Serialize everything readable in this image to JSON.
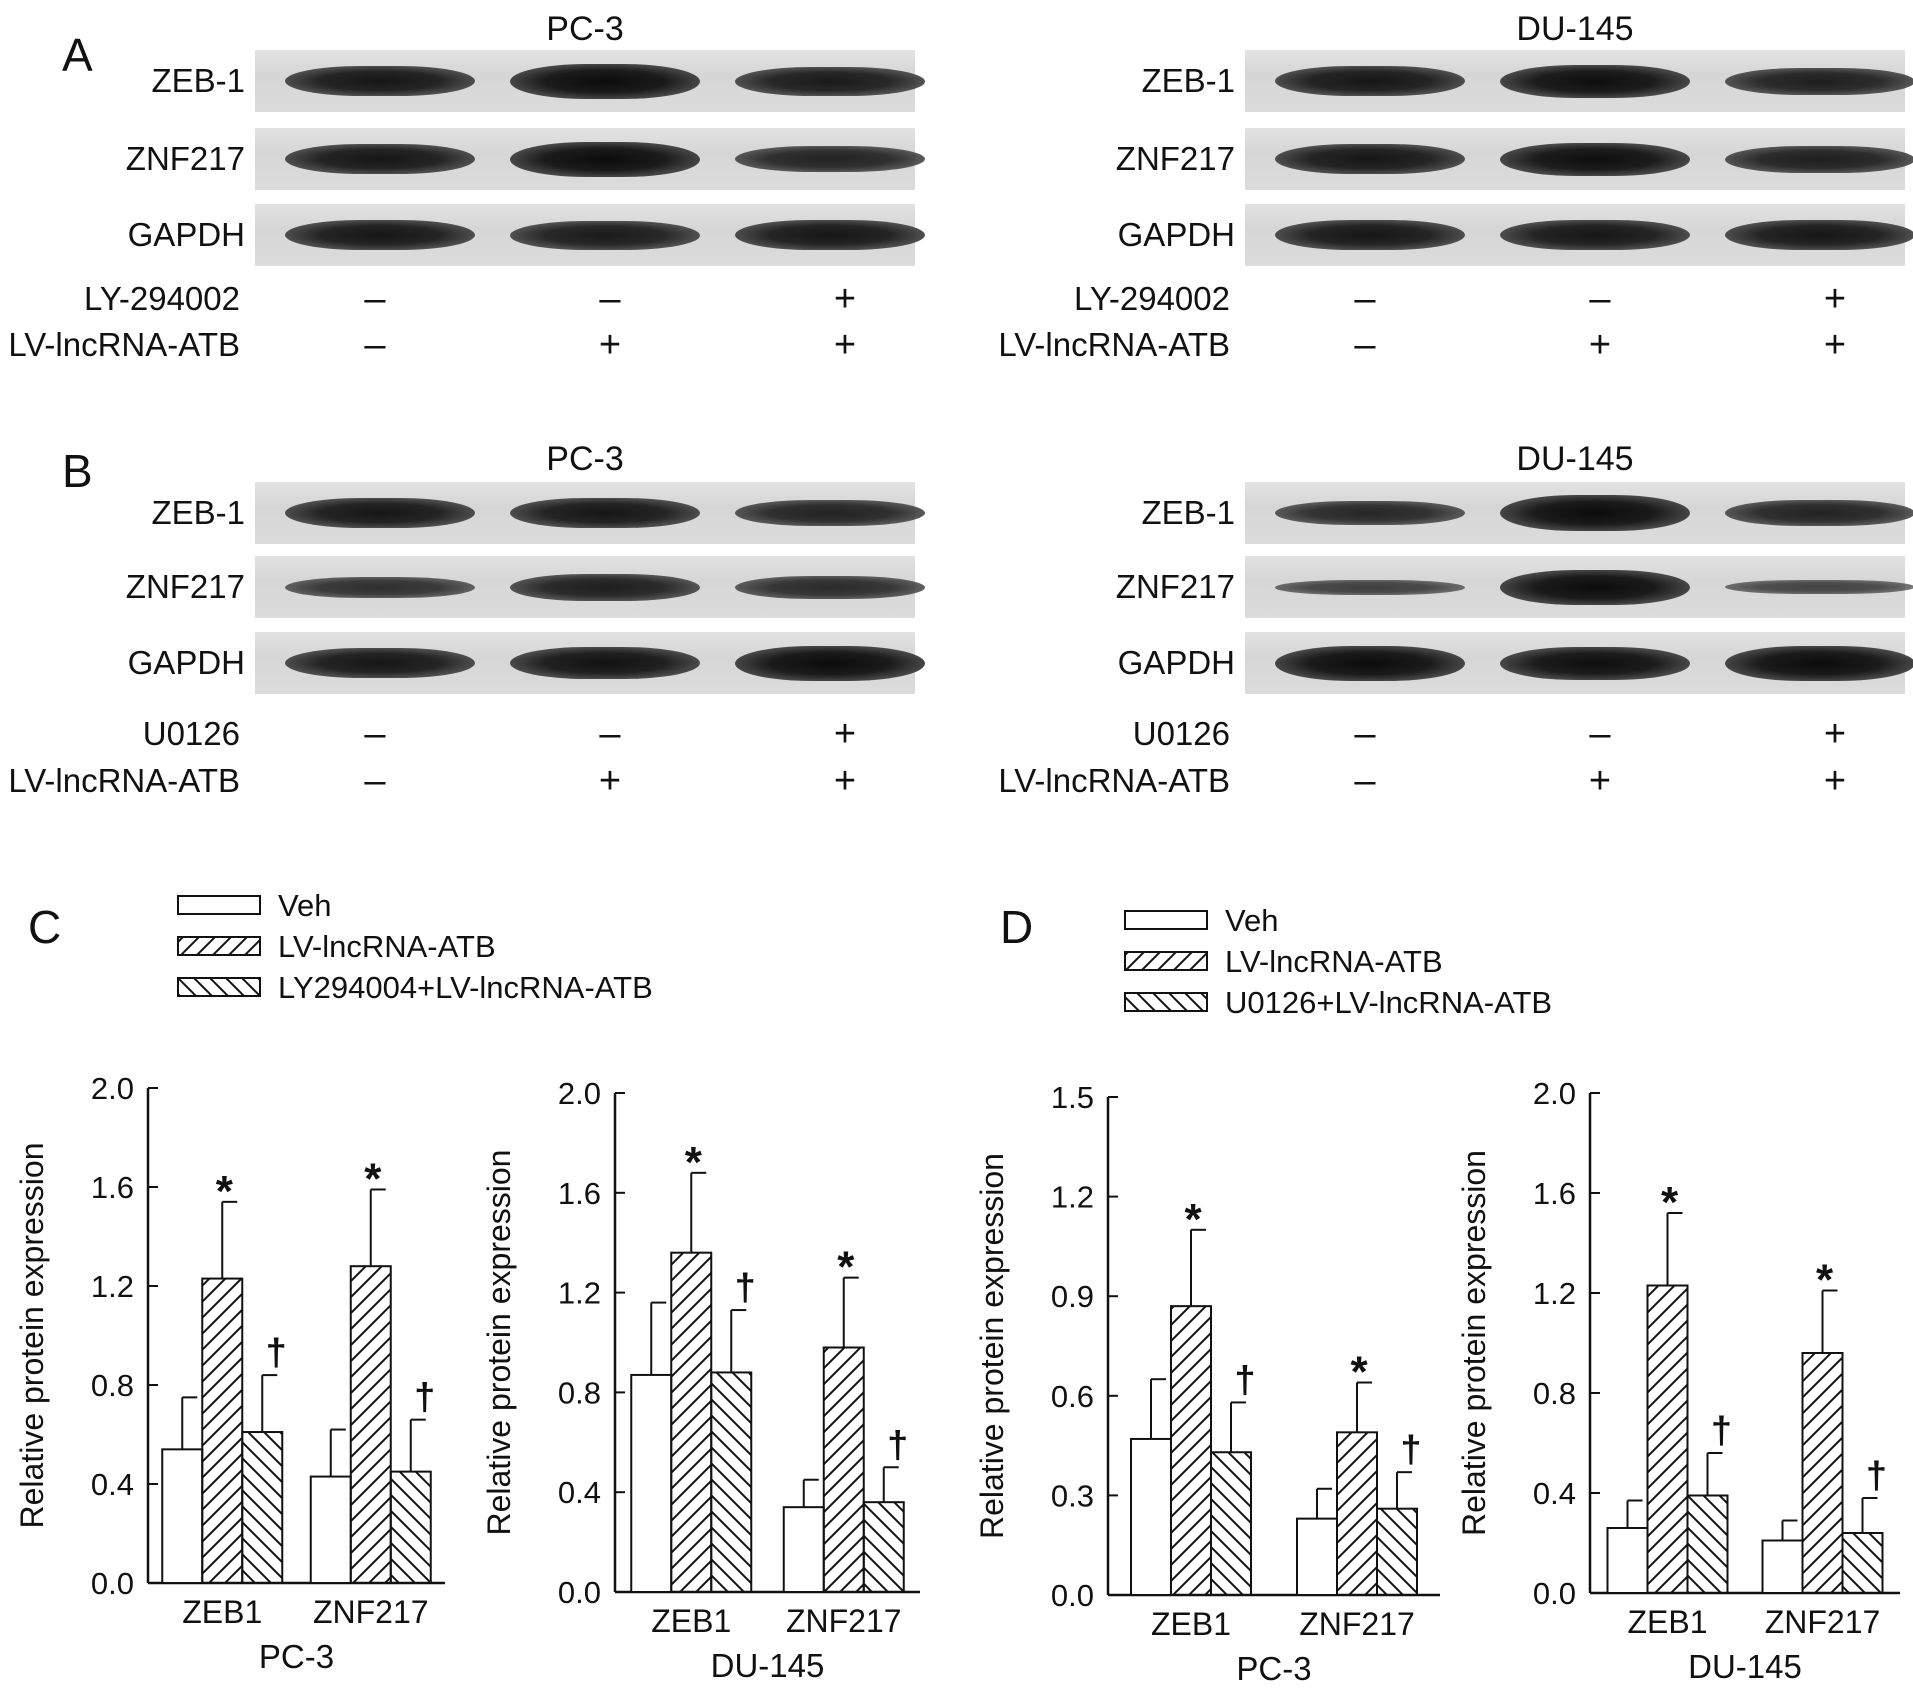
{
  "panels": {
    "A": "A",
    "B": "B",
    "C": "C",
    "D": "D"
  },
  "blots": {
    "A_left": {
      "title": "PC-3",
      "rows": [
        "ZEB-1",
        "ZNF217",
        "GAPDH"
      ],
      "treat1": "LY-294002",
      "treat2": "LV-lncRNA-ATB",
      "signs1": [
        "–",
        "–",
        "+"
      ],
      "signs2": [
        "–",
        "+",
        "+"
      ]
    },
    "A_right": {
      "title": "DU-145",
      "rows": [
        "ZEB-1",
        "ZNF217",
        "GAPDH"
      ],
      "treat1": "LY-294002",
      "treat2": "LV-lncRNA-ATB",
      "signs1": [
        "–",
        "–",
        "+"
      ],
      "signs2": [
        "–",
        "+",
        "+"
      ]
    },
    "B_left": {
      "title": "PC-3",
      "rows": [
        "ZEB-1",
        "ZNF217",
        "GAPDH"
      ],
      "treat1": "U0126",
      "treat2": "LV-lncRNA-ATB",
      "signs1": [
        "–",
        "–",
        "+"
      ],
      "signs2": [
        "–",
        "+",
        "+"
      ]
    },
    "B_right": {
      "title": "DU-145",
      "rows": [
        "ZEB-1",
        "ZNF217",
        "GAPDH"
      ],
      "treat1": "U0126",
      "treat2": "LV-lncRNA-ATB",
      "signs1": [
        "–",
        "–",
        "+"
      ],
      "signs2": [
        "–",
        "+",
        "+"
      ]
    }
  },
  "legends": {
    "C": [
      "Veh",
      "LV-lncRNA-ATB",
      "LY294004+LV-lncRNA-ATB"
    ],
    "D": [
      "Veh",
      "LV-lncRNA-ATB",
      "U0126+LV-lncRNA-ATB"
    ]
  },
  "chart_data": [
    {
      "type": "bar",
      "panel": "C",
      "cell_line": "PC-3",
      "categories": [
        "ZEB1",
        "ZNF217"
      ],
      "xlabel": "PC-3",
      "ylabel": "Relative protein expression",
      "ylim": [
        0,
        2.0
      ],
      "yticks": [
        "0.0",
        "0.4",
        "0.8",
        "1.2",
        "1.6",
        "2.0"
      ],
      "series": [
        {
          "name": "Veh",
          "values": [
            0.54,
            0.43
          ],
          "errors": [
            0.21,
            0.19
          ],
          "marks": [
            "",
            ""
          ]
        },
        {
          "name": "LV-lncRNA-ATB",
          "values": [
            1.23,
            1.28
          ],
          "errors": [
            0.31,
            0.31
          ],
          "marks": [
            "*",
            "*"
          ]
        },
        {
          "name": "LY294004+LV-lncRNA-ATB",
          "values": [
            0.61,
            0.45
          ],
          "errors": [
            0.23,
            0.21
          ],
          "marks": [
            "†",
            "†"
          ]
        }
      ]
    },
    {
      "type": "bar",
      "panel": "C",
      "cell_line": "DU-145",
      "categories": [
        "ZEB1",
        "ZNF217"
      ],
      "xlabel": "DU-145",
      "ylabel": "Relative protein expression",
      "ylim": [
        0,
        2.0
      ],
      "yticks": [
        "0.0",
        "0.4",
        "0.8",
        "1.2",
        "1.6",
        "2.0"
      ],
      "series": [
        {
          "name": "Veh",
          "values": [
            0.87,
            0.34
          ],
          "errors": [
            0.29,
            0.11
          ],
          "marks": [
            "",
            ""
          ]
        },
        {
          "name": "LV-lncRNA-ATB",
          "values": [
            1.36,
            0.98
          ],
          "errors": [
            0.32,
            0.28
          ],
          "marks": [
            "*",
            "*"
          ]
        },
        {
          "name": "LY294004+LV-lncRNA-ATB",
          "values": [
            0.88,
            0.36
          ],
          "errors": [
            0.25,
            0.14
          ],
          "marks": [
            "†",
            "†"
          ]
        }
      ]
    },
    {
      "type": "bar",
      "panel": "D",
      "cell_line": "PC-3",
      "categories": [
        "ZEB1",
        "ZNF217"
      ],
      "xlabel": "PC-3",
      "ylabel": "Relative protein expression",
      "ylim": [
        0,
        1.5
      ],
      "yticks": [
        "0.0",
        "0.3",
        "0.6",
        "0.9",
        "1.2",
        "1.5"
      ],
      "series": [
        {
          "name": "Veh",
          "values": [
            0.47,
            0.23
          ],
          "errors": [
            0.18,
            0.09
          ],
          "marks": [
            "",
            ""
          ]
        },
        {
          "name": "LV-lncRNA-ATB",
          "values": [
            0.87,
            0.49
          ],
          "errors": [
            0.23,
            0.15
          ],
          "marks": [
            "*",
            "*"
          ]
        },
        {
          "name": "U0126+LV-lncRNA-ATB",
          "values": [
            0.43,
            0.26
          ],
          "errors": [
            0.15,
            0.11
          ],
          "marks": [
            "†",
            "†"
          ]
        }
      ]
    },
    {
      "type": "bar",
      "panel": "D",
      "cell_line": "DU-145",
      "categories": [
        "ZEB1",
        "ZNF217"
      ],
      "xlabel": "DU-145",
      "ylabel": "Relative protein expression",
      "ylim": [
        0,
        2.0
      ],
      "yticks": [
        "0.0",
        "0.4",
        "0.8",
        "1.2",
        "1.6",
        "2.0"
      ],
      "series": [
        {
          "name": "Veh",
          "values": [
            0.26,
            0.21
          ],
          "errors": [
            0.11,
            0.08
          ],
          "marks": [
            "",
            ""
          ]
        },
        {
          "name": "LV-lncRNA-ATB",
          "values": [
            1.23,
            0.96
          ],
          "errors": [
            0.29,
            0.25
          ],
          "marks": [
            "*",
            "*"
          ]
        },
        {
          "name": "U0126+LV-lncRNA-ATB",
          "values": [
            0.39,
            0.24
          ],
          "errors": [
            0.17,
            0.14
          ],
          "marks": [
            "†",
            "†"
          ]
        }
      ]
    }
  ]
}
